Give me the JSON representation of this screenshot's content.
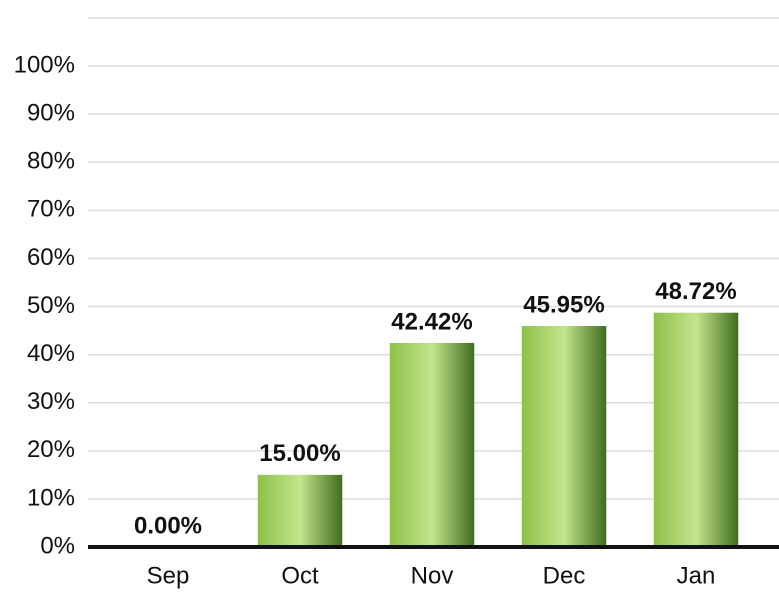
{
  "chart_data": {
    "type": "bar",
    "categories": [
      "Sep",
      "Oct",
      "Nov",
      "Dec",
      "Jan"
    ],
    "values": [
      0,
      15,
      42.42,
      45.95,
      48.72
    ],
    "value_labels": [
      "0.00%",
      "15.00%",
      "42.42%",
      "45.95%",
      "48.72%"
    ],
    "color": "#8dbf4a",
    "ylim": [
      0,
      110
    ],
    "yticks": [
      {
        "value": 0,
        "label": "0%"
      },
      {
        "value": 10,
        "label": "10%"
      },
      {
        "value": 20,
        "label": "20%"
      },
      {
        "value": 30,
        "label": "30%"
      },
      {
        "value": 40,
        "label": "40%"
      },
      {
        "value": 50,
        "label": "50%"
      },
      {
        "value": 60,
        "label": "60%"
      },
      {
        "value": 70,
        "label": "70%"
      },
      {
        "value": 80,
        "label": "80%"
      },
      {
        "value": 90,
        "label": "90%"
      },
      {
        "value": 100,
        "label": "100%"
      }
    ],
    "grid": true
  }
}
